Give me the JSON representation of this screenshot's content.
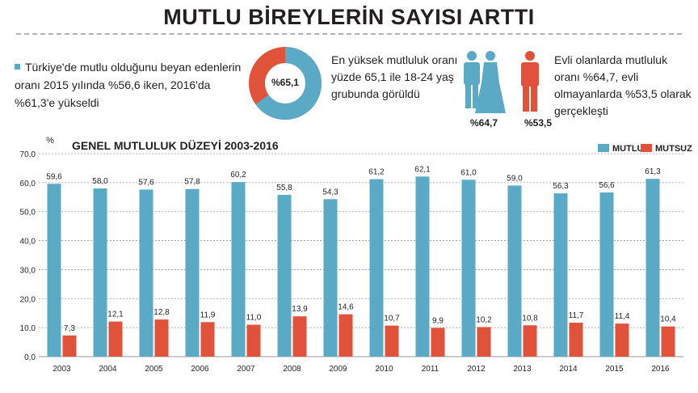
{
  "title": "MUTLU BİREYLERİN SAYISI ARTTI",
  "info_left": "Türkiye'de mutlu olduğunu beyan edenlerin oranı 2015 yılında %56,6 iken, 2016'da %61,3'e yükseldi",
  "donut": {
    "label": "%65,1",
    "value": 65.1,
    "color_main": "#5aaac6",
    "color_rest": "#e0533a"
  },
  "info_mid": "En yüksek mutluluk oranı yüzde 65,1 ile 18-24 yaş grubunda görüldü",
  "married": {
    "label": "%64,7",
    "color": "#5aaac6"
  },
  "single": {
    "label": "%53,5",
    "color": "#e0533a"
  },
  "info_right": "Evli olanlarda mutluluk oranı %64,7, evli olmayanlarda %53,5 olarak gerçekleşti",
  "colors": {
    "mutlu": "#5aaac6",
    "mutsuz": "#e0533a"
  },
  "chart_data": {
    "type": "bar",
    "title": "GENEL MUTLULUK DÜZEYİ 2003-2016",
    "ylabel": "%",
    "ylim": [
      0,
      70
    ],
    "yticks": [
      "0,0",
      "10,0",
      "20,0",
      "30,0",
      "40,0",
      "50,0",
      "60,0",
      "70,0"
    ],
    "categories": [
      "2003",
      "2004",
      "2005",
      "2006",
      "2007",
      "2008",
      "2009",
      "2010",
      "2011",
      "2012",
      "2013",
      "2014",
      "2015",
      "2016"
    ],
    "series": [
      {
        "name": "MUTLU",
        "values": [
          59.6,
          58.0,
          57.6,
          57.8,
          60.2,
          55.8,
          54.3,
          61.2,
          62.1,
          61.0,
          59.0,
          56.3,
          56.6,
          61.3
        ],
        "labels": [
          "59,6",
          "58,0",
          "57,6",
          "57,8",
          "60,2",
          "55,8",
          "54,3",
          "61,2",
          "62,1",
          "61,0",
          "59,0",
          "56,3",
          "56,6",
          "61,3"
        ]
      },
      {
        "name": "MUTSUZ",
        "values": [
          7.3,
          12.1,
          12.8,
          11.9,
          11.0,
          13.9,
          14.6,
          10.7,
          9.9,
          10.2,
          10.8,
          11.7,
          11.4,
          10.4
        ],
        "labels": [
          "7,3",
          "12,1",
          "12,8",
          "11,9",
          "11,0",
          "13,9",
          "14,6",
          "10,7",
          "9,9",
          "10,2",
          "10,8",
          "11,7",
          "11,4",
          "10,4"
        ]
      }
    ]
  }
}
